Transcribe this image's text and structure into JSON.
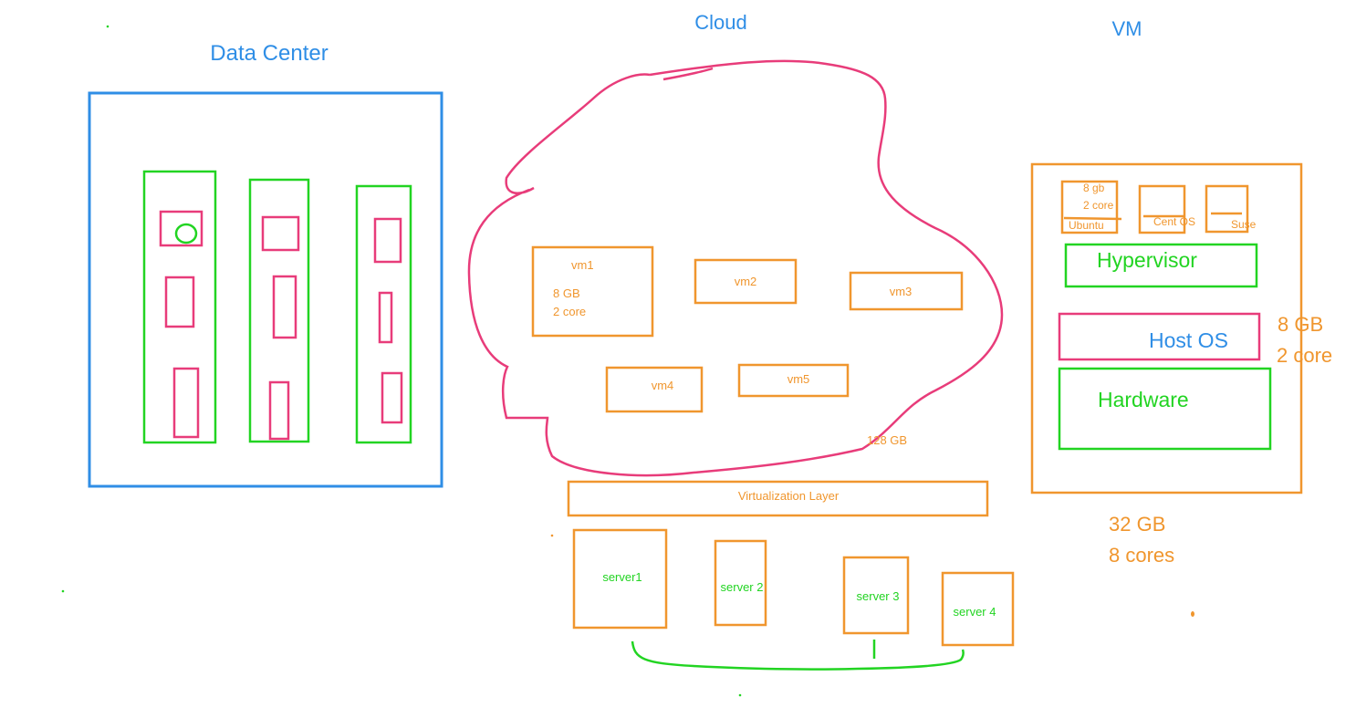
{
  "data_center": {
    "title": "Data Center"
  },
  "cloud": {
    "title": "Cloud",
    "vms": [
      {
        "label": "vm1",
        "specs": [
          "8 GB",
          "2 core"
        ]
      },
      {
        "label": "vm2"
      },
      {
        "label": "vm3"
      },
      {
        "label": "vm4"
      },
      {
        "label": "vm5"
      }
    ],
    "total_memory": "128 GB",
    "virtualization_layer": "Virtualization Layer",
    "servers": [
      "server1",
      "server 2",
      "server 3",
      "server 4"
    ]
  },
  "vm_stack": {
    "title": "VM",
    "guest_vms": [
      {
        "label": "Ubuntu",
        "specs": [
          "8 gb",
          "2 core"
        ]
      },
      {
        "label": "Cent OS"
      },
      {
        "label": "Suse"
      }
    ],
    "hypervisor": "Hypervisor",
    "host_os": "Host OS",
    "host_os_specs": [
      "8 GB",
      "2 core"
    ],
    "hardware": "Hardware",
    "machine_specs": [
      "32 GB",
      "8 cores"
    ]
  },
  "colors": {
    "blue": "#2f8ee6",
    "green": "#22d422",
    "pink": "#e83c7a",
    "orange": "#f0962e"
  }
}
